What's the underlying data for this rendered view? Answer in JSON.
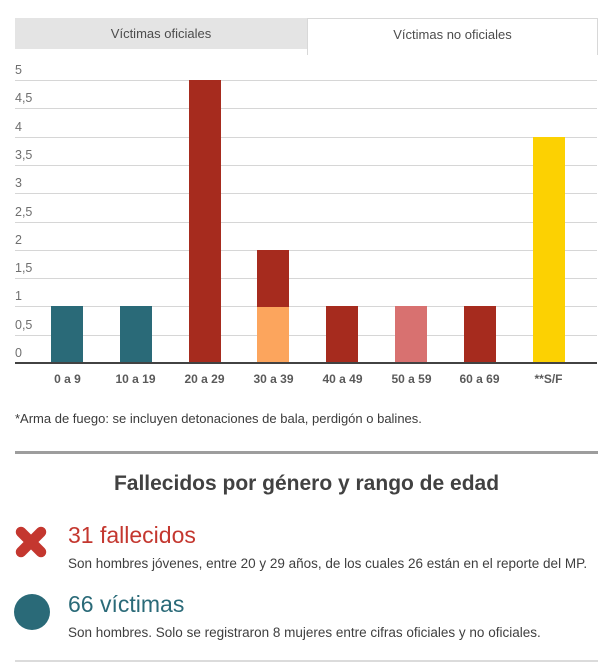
{
  "tabs": [
    {
      "label": "Víctimas oficiales",
      "active": false
    },
    {
      "label": "Víctimas no oficiales",
      "active": true
    }
  ],
  "chart_data": {
    "type": "bar",
    "title": "",
    "xlabel": "",
    "ylabel": "",
    "categories": [
      "0 a 9",
      "10 a 19",
      "20 a 29",
      "30 a 39",
      "40 a 49",
      "50 a 59",
      "60 a 69",
      "**S/F"
    ],
    "bars": [
      {
        "category": "0 a 9",
        "total": 1,
        "segments": [
          {
            "value": 1,
            "color": "#2a6a78"
          }
        ]
      },
      {
        "category": "10 a 19",
        "total": 1,
        "segments": [
          {
            "value": 1,
            "color": "#2a6a78"
          }
        ]
      },
      {
        "category": "20 a 29",
        "total": 5,
        "segments": [
          {
            "value": 5,
            "color": "#a62b1e"
          }
        ]
      },
      {
        "category": "30 a 39",
        "total": 2,
        "segments": [
          {
            "value": 1,
            "color": "#fca55d"
          },
          {
            "value": 1,
            "color": "#a62b1e"
          }
        ]
      },
      {
        "category": "40 a 49",
        "total": 1,
        "segments": [
          {
            "value": 1,
            "color": "#a62b1e"
          }
        ]
      },
      {
        "category": "50 a 59",
        "total": 1,
        "segments": [
          {
            "value": 1,
            "color": "#d87170"
          }
        ]
      },
      {
        "category": "60 a 69",
        "total": 1,
        "segments": [
          {
            "value": 1,
            "color": "#a62b1e"
          }
        ]
      },
      {
        "category": "**S/F",
        "total": 4,
        "segments": [
          {
            "value": 4,
            "color": "#fcd102"
          }
        ]
      }
    ],
    "ylim": [
      0,
      5
    ],
    "y_tick_step": 0.5,
    "y_ticks": [
      "0",
      "0,5",
      "1",
      "1,5",
      "2",
      "2,5",
      "3",
      "3,5",
      "4",
      "4,5",
      "5"
    ],
    "grid": true,
    "legend": false
  },
  "footnote": "*Arma de fuego: se incluyen detonaciones de bala, perdigón o balines.",
  "section": {
    "title": "Fallecidos por género y rango de edad",
    "items": [
      {
        "icon": "x-mark-icon",
        "icon_color": "#c4372f",
        "heading": "31 fallecidos",
        "heading_color": "#c4372f",
        "description": "Son hombres jóvenes, entre 20 y 29 años, de los cuales 26 están en el reporte del MP."
      },
      {
        "icon": "filled-circle-icon",
        "icon_color": "#2a6a78",
        "heading": "66 víctimas",
        "heading_color": "#2a6a78",
        "description": "Son hombres. Solo se registraron 8 mujeres entre cifras oficiales y no oficiales."
      }
    ]
  }
}
